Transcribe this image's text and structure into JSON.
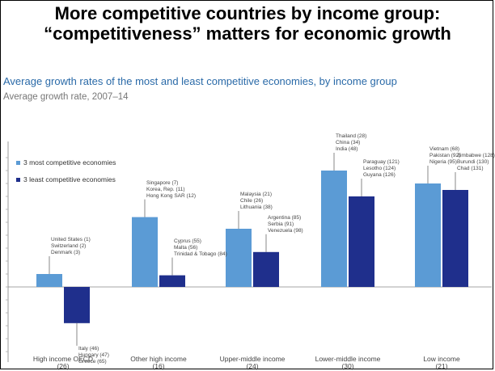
{
  "slide": {
    "title": "More competitive countries by income group: “competitiveness” matters for economic growth"
  },
  "colors": {
    "most": "#5b9bd5",
    "least": "#1f2f8c",
    "title": "#2a6aa8"
  },
  "chart_data": {
    "type": "bar",
    "title": "Average growth rates of the most and least competitive economies, by income group",
    "subtitle": "Average growth rate, 2007–14",
    "categories": [
      "High income OECD\n(26)",
      "Other high income\n(16)",
      "Upper-middle income\n(24)",
      "Lower-middle income\n(30)",
      "Low income\n(21)"
    ],
    "series": [
      {
        "name": "3 most competitive economies",
        "values": [
          1.0,
          5.4,
          4.5,
          9.0,
          8.0
        ]
      },
      {
        "name": "3 least competitive economies",
        "values": [
          -2.8,
          0.9,
          2.7,
          7.0,
          7.5
        ]
      }
    ],
    "ylim": [
      -5.5,
      10
    ],
    "annotations": [
      {
        "category": 0,
        "series": 0,
        "text": "United States (1)\nSwitzerland (2)\nDenmark (3)"
      },
      {
        "category": 0,
        "series": 1,
        "text": "Italy (46)\nHungary (47)\nGreece (65)"
      },
      {
        "category": 1,
        "series": 0,
        "text": "Singapore (7)\nKorea, Rep. (11)\nHong Kong SAR (12)"
      },
      {
        "category": 1,
        "series": 1,
        "text": "Cyprus (55)\nMalta (56)\nTrinidad & Tobago (84)"
      },
      {
        "category": 2,
        "series": 0,
        "text": "Malaysia (21)\nChile (26)\nLithuania (38)"
      },
      {
        "category": 2,
        "series": 1,
        "text": "Argentina (85)\nSerbia (91)\nVenezuela (98)"
      },
      {
        "category": 3,
        "series": 0,
        "text": "Thailand (28)\nChina (34)\nIndia (48)"
      },
      {
        "category": 3,
        "series": 1,
        "text": "Paraguay (121)\nLesotho (124)\nGuyana (126)"
      },
      {
        "category": 4,
        "series": 0,
        "text": "Vietnam (68)\nPakistan (92)\nNigeria (95)"
      },
      {
        "category": 4,
        "series": 1,
        "text": "Zimbabwe (128)\nBurundi (130)\nChad (131)"
      }
    ]
  }
}
